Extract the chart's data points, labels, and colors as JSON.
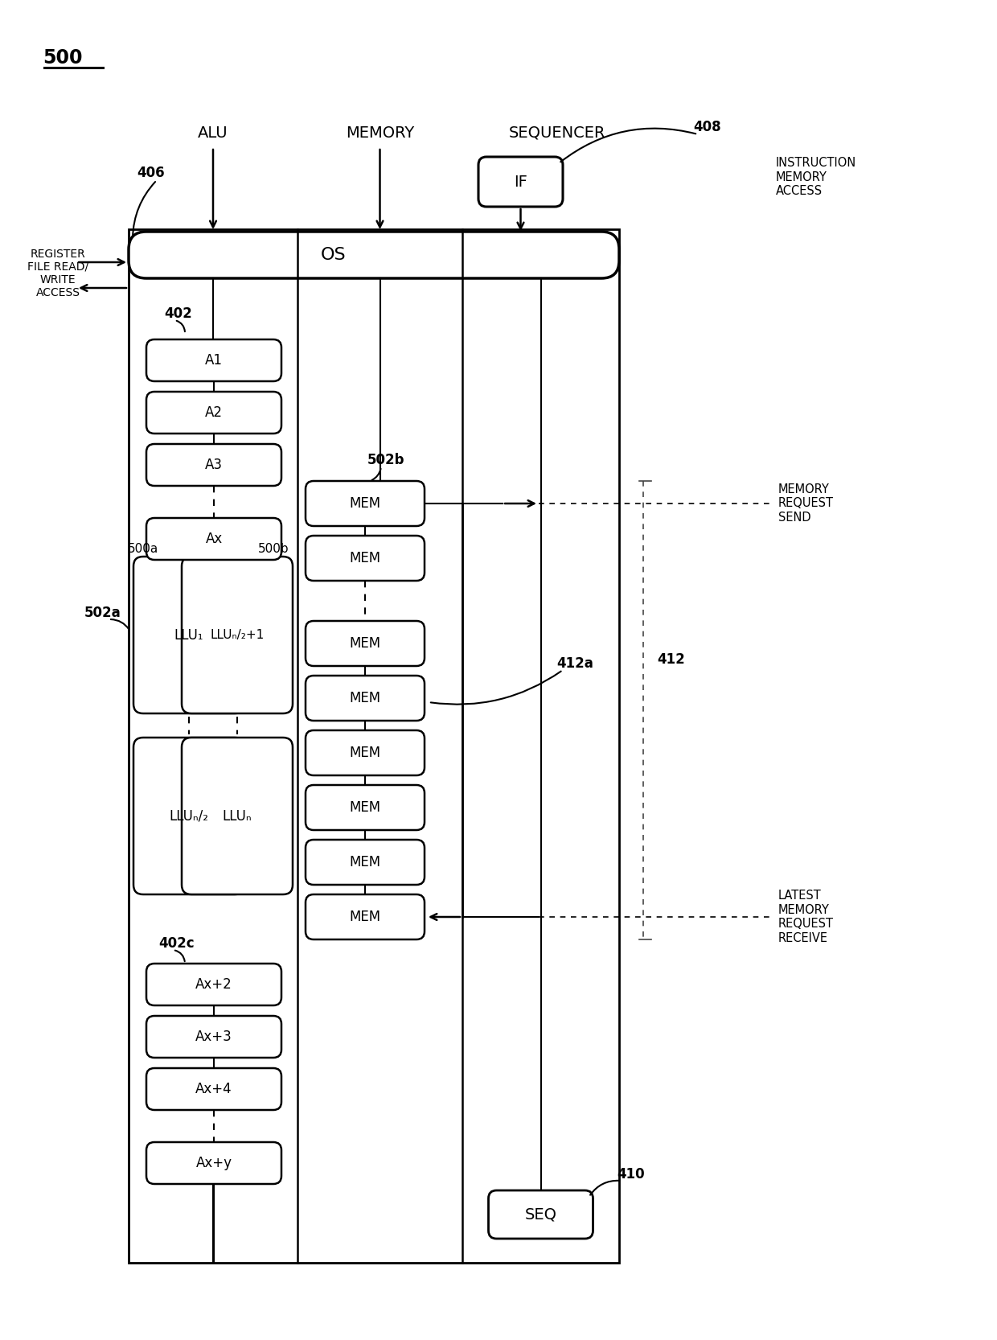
{
  "bg_color": "#ffffff",
  "fig_number": "500",
  "label_406": "406",
  "label_408": "408",
  "label_402": "402",
  "label_402c": "402c",
  "label_500a": "500a",
  "label_500b": "500b",
  "label_502a": "502a",
  "label_502b": "502b",
  "label_412a": "412a",
  "label_412": "412",
  "label_410": "410",
  "col_alu": "ALU",
  "col_memory": "MEMORY",
  "col_sequencer": "SEQUENCER",
  "text_instr": "INSTRUCTION\nMEMORY\nACCESS",
  "text_reg": "REGISTER\nFILE READ/\nWRITE\nACCESS",
  "text_mem_req_send": "MEMORY\nREQUEST\nSEND",
  "text_latest_mem": "LATEST\nMEMORY\nREQUEST\nRECEIVE",
  "os_label": "OS",
  "if_label": "IF",
  "seq_label": "SEQ",
  "a_boxes": [
    "A1",
    "A2",
    "A3",
    "Ax"
  ],
  "ax_boxes": [
    "Ax+2",
    "Ax+3",
    "Ax+4",
    "Ax+y"
  ],
  "llu_top_labels": [
    "LLU₁",
    "LLUₙ/₂+1"
  ],
  "llu_bot_labels": [
    "LLUₙ/₂",
    "LLUₙ"
  ],
  "mem_labels": [
    "MEM",
    "MEM",
    "MEM",
    "MEM",
    "MEM",
    "MEM",
    "MEM",
    "MEM"
  ]
}
